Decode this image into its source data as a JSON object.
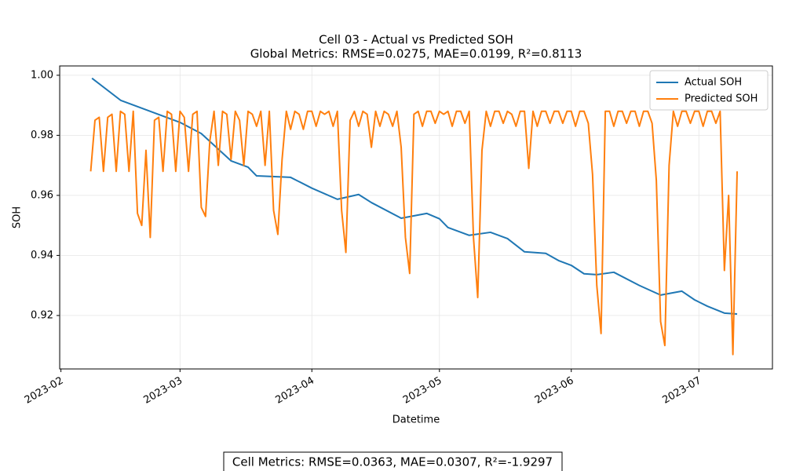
{
  "chart_data": {
    "type": "line",
    "title": "Cell 03 - Actual vs Predicted SOH",
    "subtitle": "Global Metrics: RMSE=0.0275, MAE=0.0199, R²=0.8113",
    "x_label": "Datetime",
    "y_label": "SOH",
    "annotation": "Cell Metrics: RMSE=0.0363, MAE=0.0307, R²=-1.9297",
    "grid": true,
    "legend": "upper right",
    "xlim": [
      -0.3,
      167.3
    ],
    "xticks": [
      {
        "value": 0,
        "label": "2023-02"
      },
      {
        "value": 28,
        "label": "2023-03"
      },
      {
        "value": 59,
        "label": "2023-04"
      },
      {
        "value": 89,
        "label": "2023-05"
      },
      {
        "value": 120,
        "label": "2023-06"
      },
      {
        "value": 150,
        "label": "2023-07"
      }
    ],
    "ylim": [
      0.9022,
      1.0031
    ],
    "yticks": [
      0.92,
      0.94,
      0.96,
      0.98,
      {
        "value": 1,
        "label": "1.00"
      }
    ],
    "series": [
      {
        "name": "Actual SOH",
        "color": "#1f77b4",
        "x": [
          7.3,
          14.1,
          20,
          28,
          33,
          40,
          44,
          46,
          54,
          59,
          65,
          70,
          73,
          80,
          86,
          89,
          91,
          96,
          101,
          105,
          109,
          114,
          117,
          120,
          123,
          126,
          130,
          136,
          141,
          146,
          149,
          152,
          156,
          159
        ],
        "values": [
          0.999,
          0.9916,
          0.9885,
          0.9843,
          0.9806,
          0.9715,
          0.9694,
          0.9665,
          0.966,
          0.9624,
          0.9587,
          0.9603,
          0.9576,
          0.9524,
          0.954,
          0.9522,
          0.9493,
          0.9467,
          0.9477,
          0.9456,
          0.9412,
          0.9407,
          0.9383,
          0.9367,
          0.9339,
          0.9336,
          0.9344,
          0.93,
          0.9268,
          0.9281,
          0.9252,
          0.9231,
          0.9208,
          0.9205
        ]
      },
      {
        "name": "Predicted SOH",
        "color": "#ff7f0e",
        "x": [
          7,
          8,
          9,
          10,
          11,
          12,
          13,
          14,
          15,
          16,
          17,
          18,
          19,
          20,
          21,
          22,
          23,
          24,
          25,
          26,
          27,
          28,
          29,
          30,
          31,
          32,
          33,
          34,
          35,
          36,
          37,
          38,
          39,
          40,
          41,
          42,
          43,
          44,
          45,
          46,
          47,
          48,
          49,
          50,
          51,
          52,
          53,
          54,
          55,
          56,
          57,
          58,
          59,
          60,
          61,
          62,
          63,
          64,
          65,
          66,
          67,
          68,
          69,
          70,
          71,
          72,
          73,
          74,
          75,
          76,
          77,
          78,
          79,
          80,
          81,
          82,
          83,
          84,
          85,
          86,
          87,
          88,
          89,
          90,
          91,
          92,
          93,
          94,
          95,
          96,
          97,
          98,
          99,
          100,
          101,
          102,
          103,
          104,
          105,
          106,
          107,
          108,
          109,
          110,
          111,
          112,
          113,
          114,
          115,
          116,
          117,
          118,
          119,
          120,
          121,
          122,
          123,
          124,
          125,
          126,
          127,
          128,
          129,
          130,
          131,
          132,
          133,
          134,
          135,
          136,
          137,
          138,
          139,
          140,
          141,
          142,
          143,
          144,
          145,
          146,
          147,
          148,
          149,
          150,
          151,
          152,
          153,
          154,
          155,
          156,
          157,
          158,
          159
        ],
        "values": [
          0.968,
          0.985,
          0.986,
          0.968,
          0.986,
          0.987,
          0.968,
          0.988,
          0.987,
          0.968,
          0.988,
          0.954,
          0.95,
          0.975,
          0.946,
          0.985,
          0.986,
          0.968,
          0.988,
          0.987,
          0.968,
          0.988,
          0.986,
          0.968,
          0.987,
          0.988,
          0.956,
          0.953,
          0.978,
          0.988,
          0.97,
          0.988,
          0.987,
          0.972,
          0.988,
          0.985,
          0.97,
          0.988,
          0.987,
          0.983,
          0.988,
          0.97,
          0.988,
          0.955,
          0.947,
          0.972,
          0.988,
          0.982,
          0.988,
          0.987,
          0.982,
          0.988,
          0.988,
          0.983,
          0.988,
          0.987,
          0.988,
          0.983,
          0.988,
          0.955,
          0.941,
          0.985,
          0.988,
          0.983,
          0.988,
          0.987,
          0.976,
          0.988,
          0.983,
          0.988,
          0.987,
          0.983,
          0.988,
          0.976,
          0.946,
          0.934,
          0.987,
          0.988,
          0.983,
          0.988,
          0.988,
          0.984,
          0.988,
          0.987,
          0.988,
          0.983,
          0.988,
          0.988,
          0.984,
          0.988,
          0.946,
          0.926,
          0.975,
          0.988,
          0.983,
          0.988,
          0.988,
          0.984,
          0.988,
          0.987,
          0.983,
          0.988,
          0.988,
          0.969,
          0.988,
          0.983,
          0.988,
          0.988,
          0.984,
          0.988,
          0.988,
          0.984,
          0.988,
          0.988,
          0.983,
          0.988,
          0.988,
          0.984,
          0.967,
          0.93,
          0.914,
          0.988,
          0.988,
          0.983,
          0.988,
          0.988,
          0.984,
          0.988,
          0.988,
          0.983,
          0.988,
          0.988,
          0.984,
          0.965,
          0.918,
          0.91,
          0.97,
          0.988,
          0.983,
          0.988,
          0.988,
          0.984,
          0.988,
          0.988,
          0.983,
          0.988,
          0.988,
          0.984,
          0.988,
          0.935,
          0.96,
          0.907,
          0.968
        ]
      }
    ]
  }
}
